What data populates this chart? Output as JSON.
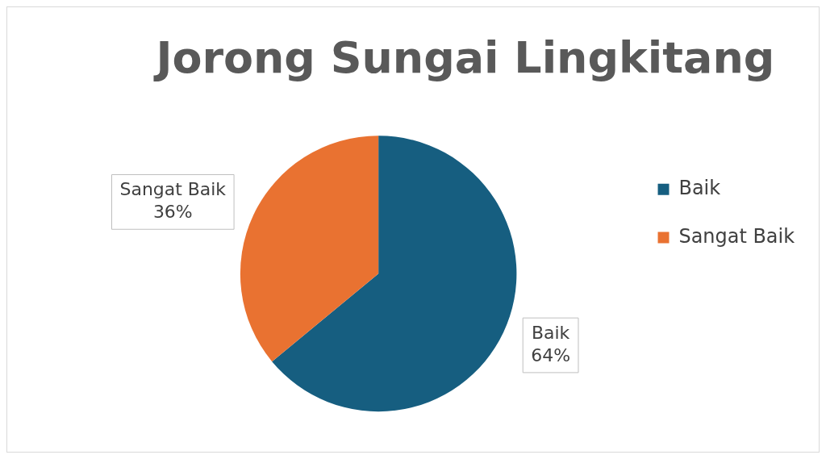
{
  "chart_data": {
    "type": "pie",
    "title": "Jorong Sungai Lingkitang",
    "categories": [
      "Baik",
      "Sangat Baik"
    ],
    "values": [
      64,
      36
    ],
    "colors": [
      "#165e80",
      "#e97231"
    ],
    "value_labels": [
      "64%",
      "36%"
    ],
    "legend": "right"
  }
}
